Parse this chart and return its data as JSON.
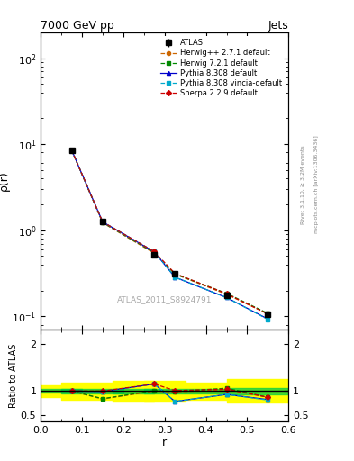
{
  "title": "7000 GeV pp",
  "title_right": "Jets",
  "ylabel_main": "ρ(r)",
  "ylabel_ratio": "Ratio to ATLAS",
  "xlabel": "r",
  "watermark": "ATLAS_2011_S8924791",
  "rivet_label": "Rivet 3.1.10, ≥ 3.2M events",
  "arxiv_label": "mcplots.cern.ch [arXiv:1306.3436]",
  "r_values": [
    0.075,
    0.15,
    0.275,
    0.325,
    0.45,
    0.55
  ],
  "atlas_y": [
    8.5,
    1.25,
    0.52,
    0.31,
    0.175,
    0.105
  ],
  "atlas_yerr": [
    0.4,
    0.06,
    0.025,
    0.015,
    0.009,
    0.005
  ],
  "herwig271_y": [
    8.5,
    1.22,
    0.54,
    0.31,
    0.18,
    0.107
  ],
  "herwig721_y": [
    8.5,
    1.23,
    0.55,
    0.31,
    0.185,
    0.108
  ],
  "pythia8308_y": [
    8.5,
    1.25,
    0.56,
    0.285,
    0.165,
    0.093
  ],
  "pythia8308v_y": [
    8.5,
    1.25,
    0.565,
    0.285,
    0.165,
    0.092
  ],
  "sherpa229_y": [
    8.5,
    1.25,
    0.565,
    0.315,
    0.183,
    0.106
  ],
  "herwig271_ratio": [
    1.0,
    0.83,
    1.0,
    0.98,
    1.03,
    0.87
  ],
  "herwig721_ratio": [
    1.0,
    0.84,
    1.01,
    0.99,
    1.06,
    0.87
  ],
  "pythia8308_ratio": [
    1.0,
    0.99,
    1.15,
    0.78,
    0.93,
    0.82
  ],
  "pythia8308v_ratio": [
    1.0,
    0.99,
    1.15,
    0.78,
    0.93,
    0.81
  ],
  "sherpa229_ratio": [
    1.0,
    1.0,
    1.15,
    1.01,
    1.04,
    0.87
  ],
  "band_centers": [
    0.05,
    0.125,
    0.225,
    0.3,
    0.4,
    0.525
  ],
  "band_half_widths": [
    0.05,
    0.075,
    0.05,
    0.05,
    0.05,
    0.075
  ],
  "atlas_ratio_err_inner": [
    0.04,
    0.05,
    0.05,
    0.05,
    0.05,
    0.07
  ],
  "atlas_ratio_err_outer": [
    0.12,
    0.18,
    0.22,
    0.22,
    0.18,
    0.25
  ],
  "color_herwig271": "#cc6600",
  "color_herwig721": "#008800",
  "color_pythia8308": "#0000cc",
  "color_pythia8308v": "#00aacc",
  "color_sherpa229": "#cc0000",
  "color_atlas": "#000000",
  "xlim": [
    0.0,
    0.6
  ],
  "ylim_main": [
    0.07,
    200
  ],
  "ylim_ratio": [
    0.35,
    2.3
  ]
}
